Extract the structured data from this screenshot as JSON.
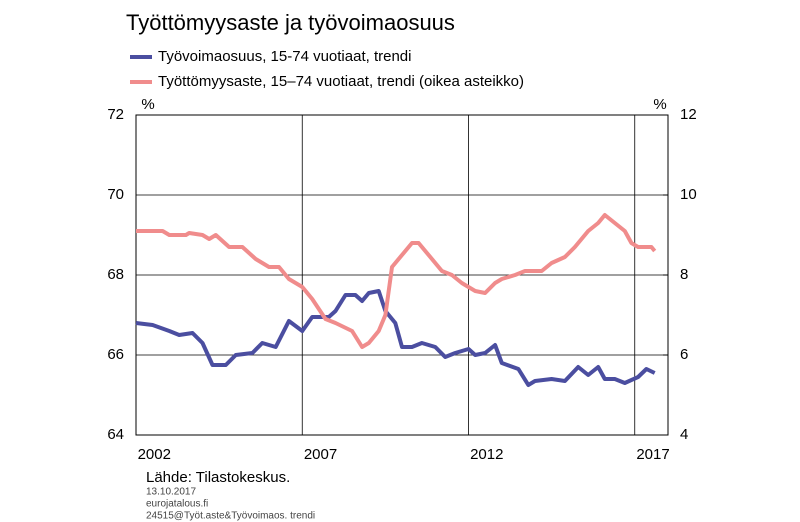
{
  "chart_data": {
    "type": "line",
    "title": "Työttömyysaste ja työvoimaosuus",
    "y_unit": "%",
    "y2_unit": "%",
    "source": "Lähde: Tilastokeskus.",
    "date": "13.10.2017",
    "site": "eurojatalous.fi",
    "code": "24515@Työt.aste&Työvoimaos. trendi",
    "xlim": [
      2002,
      2018
    ],
    "xticks": [
      2002,
      2007,
      2012,
      2017
    ],
    "ylim": [
      64,
      72
    ],
    "yticks": [
      64,
      66,
      68,
      70,
      72
    ],
    "y2lim": [
      4,
      12
    ],
    "y2ticks": [
      4,
      6,
      8,
      10,
      12
    ],
    "grid": true,
    "series": [
      {
        "name": "Työvoimaosuus, 15-74 vuotiaat, trendi",
        "color": "#4b4ea0",
        "axis": "y",
        "x": [
          2002.0,
          2002.5,
          2003.0,
          2003.3,
          2003.7,
          2004.0,
          2004.3,
          2004.7,
          2005.0,
          2005.5,
          2005.8,
          2006.2,
          2006.6,
          2007.0,
          2007.3,
          2007.8,
          2008.0,
          2008.3,
          2008.6,
          2008.8,
          2009.0,
          2009.3,
          2009.5,
          2009.8,
          2010.0,
          2010.3,
          2010.6,
          2011.0,
          2011.3,
          2011.6,
          2012.0,
          2012.2,
          2012.5,
          2012.8,
          2013.0,
          2013.5,
          2013.8,
          2014.0,
          2014.5,
          2014.9,
          2015.3,
          2015.6,
          2015.9,
          2016.1,
          2016.4,
          2016.7,
          2017.1,
          2017.35,
          2017.6
        ],
        "values": [
          66.8,
          66.75,
          66.6,
          66.5,
          66.55,
          66.3,
          65.75,
          65.75,
          66.0,
          66.05,
          66.3,
          66.2,
          66.85,
          66.6,
          66.95,
          66.95,
          67.1,
          67.5,
          67.5,
          67.35,
          67.55,
          67.6,
          67.1,
          66.8,
          66.2,
          66.2,
          66.3,
          66.2,
          65.95,
          66.05,
          66.15,
          66.0,
          66.05,
          66.25,
          65.8,
          65.65,
          65.25,
          65.35,
          65.4,
          65.35,
          65.7,
          65.5,
          65.7,
          65.4,
          65.4,
          65.3,
          65.45,
          65.65,
          65.55
        ]
      },
      {
        "name": "Työttömyysaste, 15–74 vuotiaat, trendi (oikea asteikko)",
        "color": "#f08c8c",
        "axis": "y2",
        "x": [
          2002.0,
          2002.8,
          2003.0,
          2003.5,
          2003.6,
          2004.0,
          2004.2,
          2004.4,
          2004.8,
          2005.2,
          2005.6,
          2006.0,
          2006.3,
          2006.6,
          2007.0,
          2007.3,
          2007.7,
          2008.0,
          2008.5,
          2008.8,
          2009.0,
          2009.3,
          2009.5,
          2009.7,
          2010.0,
          2010.3,
          2010.5,
          2010.8,
          2011.2,
          2011.5,
          2011.8,
          2012.2,
          2012.5,
          2012.8,
          2013.0,
          2013.4,
          2013.7,
          2014.2,
          2014.5,
          2014.9,
          2015.2,
          2015.6,
          2015.9,
          2016.1,
          2016.4,
          2016.7,
          2016.9,
          2017.1,
          2017.5,
          2017.6
        ],
        "values": [
          9.1,
          9.1,
          9.0,
          9.0,
          9.05,
          9.0,
          8.9,
          9.0,
          8.7,
          8.7,
          8.4,
          8.2,
          8.2,
          7.9,
          7.7,
          7.4,
          6.9,
          6.8,
          6.6,
          6.2,
          6.3,
          6.6,
          7.0,
          8.2,
          8.5,
          8.8,
          8.8,
          8.5,
          8.1,
          8.0,
          7.8,
          7.6,
          7.55,
          7.8,
          7.9,
          8.0,
          8.1,
          8.1,
          8.3,
          8.45,
          8.7,
          9.1,
          9.3,
          9.5,
          9.3,
          9.1,
          8.8,
          8.7,
          8.7,
          8.6
        ]
      }
    ]
  }
}
